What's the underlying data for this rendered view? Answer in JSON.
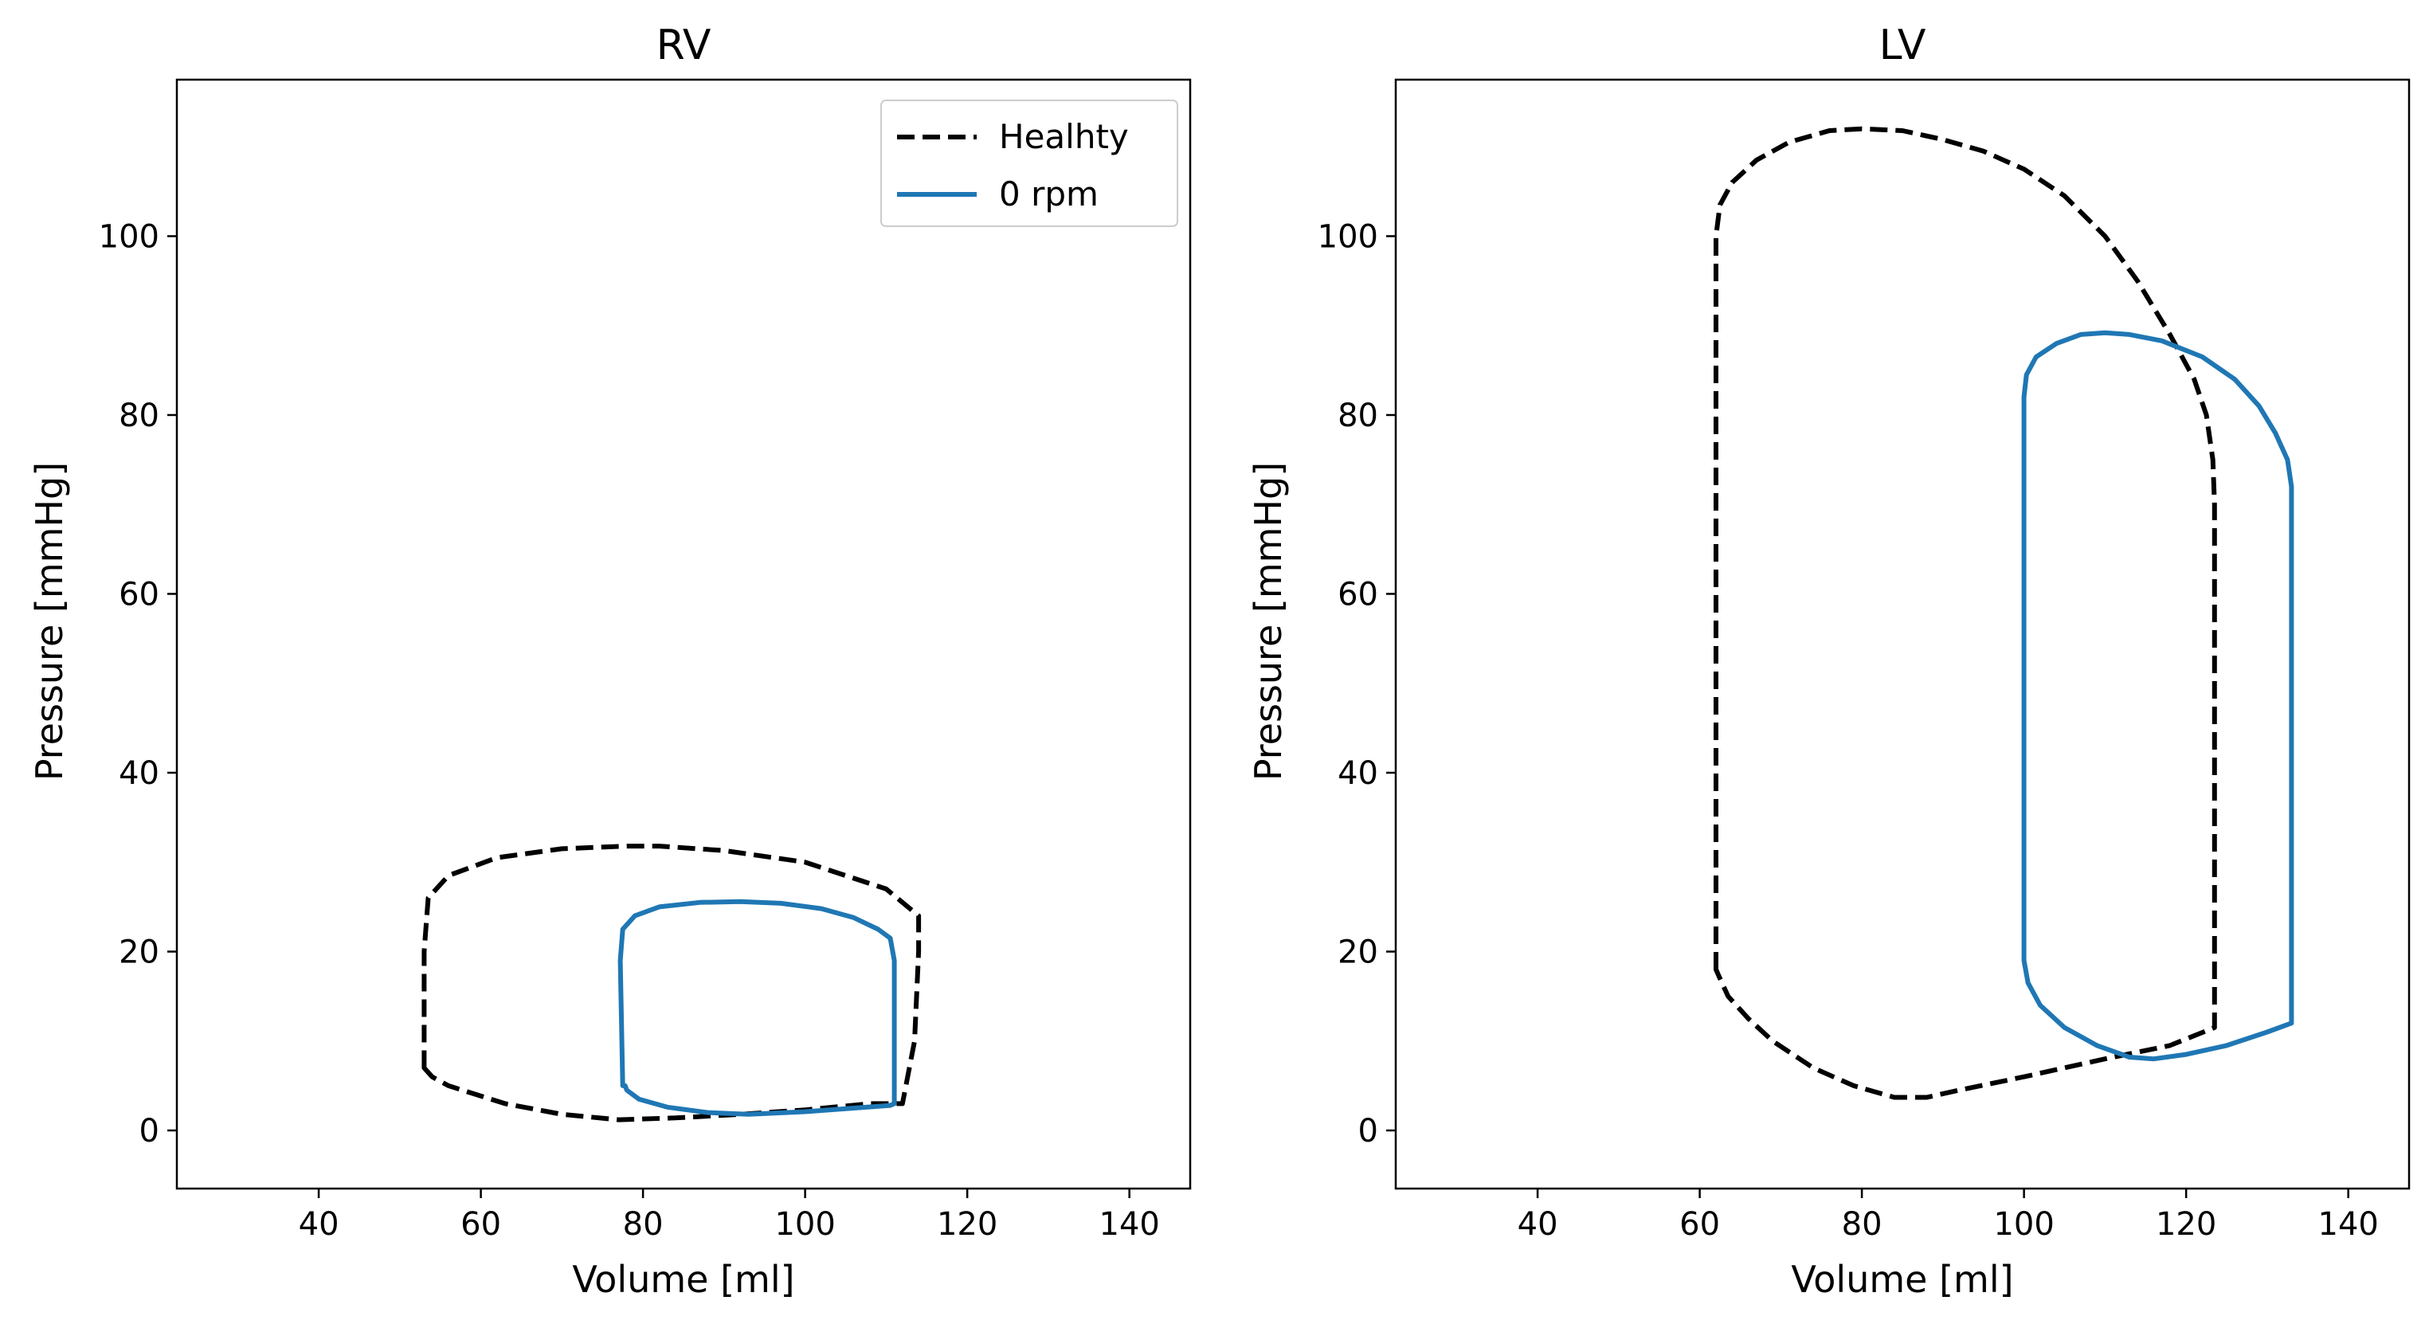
{
  "chart_data": [
    {
      "type": "line",
      "title": "RV",
      "xlabel": "Volume [ml]",
      "ylabel": "Pressure [mmHg]",
      "xlim": [
        22.5,
        147.5
      ],
      "ylim": [
        -6.5,
        117.5
      ],
      "xticks": [
        "40",
        "60",
        "80",
        "100",
        "120",
        "140"
      ],
      "yticks": [
        "0",
        "20",
        "40",
        "60",
        "80",
        "100"
      ],
      "grid": false,
      "legend": {
        "placement": "top-right",
        "show": true
      },
      "series": [
        {
          "name": "Healhty",
          "color": "#000000",
          "style": "dashed",
          "x": [
            53,
            53,
            53.5,
            56,
            62,
            70,
            78,
            82,
            90,
            100,
            110,
            114,
            114,
            113.5,
            112,
            108,
            100,
            92,
            84,
            77,
            70,
            63,
            56,
            54,
            53
          ],
          "y": [
            7,
            20,
            26,
            28.5,
            30.5,
            31.5,
            31.8,
            31.8,
            31.3,
            30,
            27,
            24,
            20,
            10,
            3,
            3,
            2.3,
            1.8,
            1.4,
            1.2,
            1.8,
            3,
            5,
            6,
            7
          ],
          "closed": true
        },
        {
          "name": "0 rpm",
          "color": "#1f77b4",
          "style": "solid",
          "x": [
            77.5,
            77.2,
            77.5,
            79,
            82,
            87,
            92,
            97,
            102,
            106,
            109,
            110.5,
            111,
            111,
            110.5,
            106,
            100,
            93,
            88,
            83,
            79.5,
            78,
            77.8,
            77.5
          ],
          "y": [
            5,
            19,
            22.5,
            24,
            25,
            25.5,
            25.6,
            25.4,
            24.8,
            23.8,
            22.5,
            21.5,
            19,
            3,
            2.8,
            2.5,
            2.1,
            1.8,
            2,
            2.6,
            3.5,
            4.5,
            5,
            5
          ],
          "closed": true
        }
      ]
    },
    {
      "type": "line",
      "title": "LV",
      "xlabel": "Volume [ml]",
      "ylabel": "Pressure [mmHg]",
      "xlim": [
        22.5,
        147.5
      ],
      "ylim": [
        -6.5,
        117.5
      ],
      "xticks": [
        "40",
        "60",
        "80",
        "100",
        "120",
        "140"
      ],
      "yticks": [
        "0",
        "20",
        "40",
        "60",
        "80",
        "100"
      ],
      "grid": false,
      "legend": {
        "show": false
      },
      "series": [
        {
          "name": "Healhty",
          "color": "#000000",
          "style": "dashed",
          "x": [
            62,
            62,
            62.5,
            64,
            67,
            71,
            76,
            80,
            85,
            90,
            95,
            100,
            105,
            110,
            114,
            118,
            121,
            122.5,
            123.3,
            123.5,
            123.5,
            118,
            110,
            100,
            92,
            88,
            84,
            79,
            74,
            69,
            66,
            63.5,
            62.5,
            62
          ],
          "y": [
            18,
            100,
            103.5,
            106,
            108.5,
            110.5,
            111.8,
            112,
            111.8,
            110.8,
            109.5,
            107.5,
            104.5,
            100,
            95,
            89,
            84,
            80,
            75,
            70,
            11.5,
            9.5,
            8,
            6,
            4.5,
            3.7,
            3.7,
            5,
            7,
            10,
            12.5,
            15,
            17,
            18
          ],
          "closed": true
        },
        {
          "name": "0 rpm",
          "color": "#1f77b4",
          "style": "solid",
          "x": [
            100,
            100,
            100.3,
            101.5,
            104,
            107,
            110,
            113,
            117,
            122,
            126,
            129,
            131,
            132.5,
            133,
            133,
            130,
            125,
            120,
            116,
            113,
            109,
            105,
            102,
            100.5,
            100
          ],
          "y": [
            19,
            82,
            84.5,
            86.5,
            88,
            89,
            89.2,
            89,
            88.3,
            86.5,
            84,
            81,
            78,
            75,
            72,
            12,
            11,
            9.5,
            8.5,
            8,
            8.2,
            9.5,
            11.5,
            14,
            16.5,
            19
          ],
          "closed": true
        }
      ]
    }
  ]
}
